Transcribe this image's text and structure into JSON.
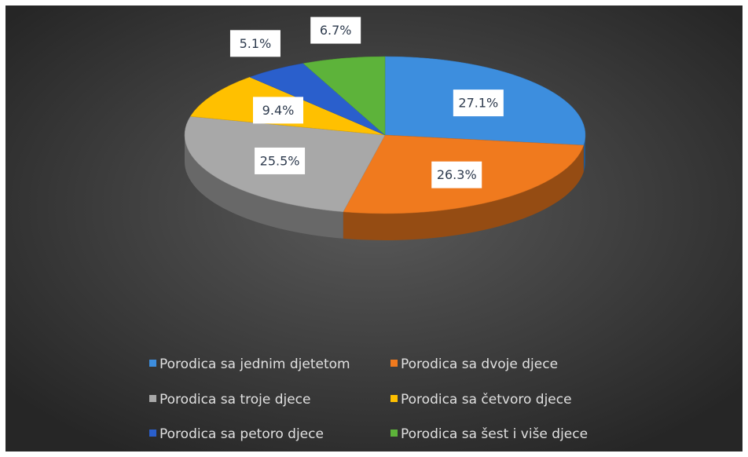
{
  "chart_data": {
    "type": "pie",
    "categories": [
      "Porodica sa jednim djetetom",
      "Porodica sa dvoje djece",
      "Porodica sa troje djece",
      "Porodica sa četvoro djece",
      "Porodica sa petoro djece",
      "Porodica sa šest i više djece"
    ],
    "values": [
      27.1,
      26.3,
      25.5,
      9.4,
      5.1,
      6.7
    ],
    "value_labels": [
      "27.1%",
      "26.3%",
      "25.5%",
      "9.4%",
      "5.1%",
      "6.7%"
    ],
    "colors": [
      "#3d8ede",
      "#f07a1e",
      "#a8a8a8",
      "#ffc000",
      "#2a5fcc",
      "#5db33a"
    ],
    "legend": "bottom"
  }
}
